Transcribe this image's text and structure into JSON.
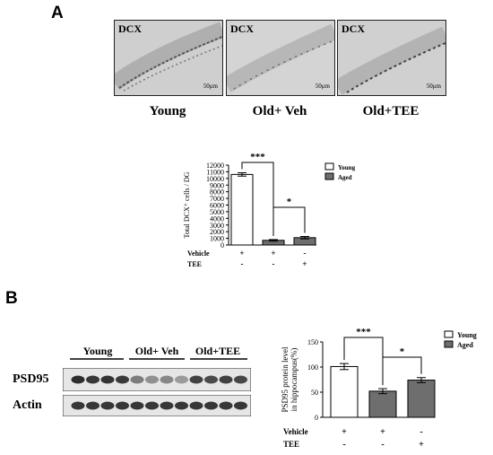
{
  "panel_a": {
    "letter": "A",
    "micrographs": [
      {
        "stain": "DCX",
        "scale_bar": "50μm",
        "caption": "Young"
      },
      {
        "stain": "DCX",
        "scale_bar": "50μm",
        "caption": "Old+ Veh"
      },
      {
        "stain": "DCX",
        "scale_bar": "50μm",
        "caption": "Old+TEE"
      }
    ]
  },
  "panel_b": {
    "letter": "B",
    "blot": {
      "group_labels": [
        "Young",
        "Old+ Veh",
        "Old+TEE"
      ],
      "row_labels": [
        "PSD95",
        "Actin"
      ],
      "psd95_intensity": [
        0.95,
        0.9,
        0.92,
        0.88,
        0.55,
        0.45,
        0.5,
        0.4,
        0.85,
        0.8,
        0.85,
        0.82
      ],
      "actin_intensity": [
        0.9,
        0.9,
        0.9,
        0.9,
        0.9,
        0.9,
        0.9,
        0.9,
        0.9,
        0.9,
        0.9,
        0.9
      ]
    }
  },
  "chart_data": [
    {
      "type": "bar",
      "ylabel": "Total DCX⁺ cells / DG",
      "yticks": [
        0,
        1000,
        2000,
        3000,
        4000,
        5000,
        6000,
        7000,
        8000,
        9000,
        10000,
        11000,
        12000
      ],
      "ylim": [
        0,
        12000
      ],
      "categories": [
        "Young",
        "Old+ Veh",
        "Old+TEE"
      ],
      "values": [
        10600,
        700,
        1100
      ],
      "errors": [
        250,
        120,
        180
      ],
      "bar_colors": [
        "#ffffff",
        "#6e6e6e",
        "#6e6e6e"
      ],
      "legend": [
        {
          "label": "Young",
          "color": "#ffffff"
        },
        {
          "label": "Aged",
          "color": "#6e6e6e"
        }
      ],
      "legend_position": "top-right",
      "treatment_rows": [
        {
          "label": "Vehicle",
          "signs": [
            "+",
            "+",
            "-"
          ]
        },
        {
          "label": "TEE",
          "signs": [
            "-",
            "-",
            "+"
          ]
        }
      ],
      "significance": [
        {
          "from": 0,
          "to": 1,
          "label": "***"
        },
        {
          "from": 1,
          "to": 2,
          "label": "*"
        }
      ]
    },
    {
      "type": "bar",
      "ylabel": "PSD95 protein level in hippocampus(%)",
      "ylabel_lines": [
        "PSD95 protein level",
        "in hippocampus(%)"
      ],
      "yticks": [
        0,
        50,
        100,
        150
      ],
      "ylim": [
        0,
        150
      ],
      "categories": [
        "Young",
        "Old+ Veh",
        "Old+TEE"
      ],
      "values": [
        101,
        52,
        74
      ],
      "errors": [
        6,
        5,
        5
      ],
      "bar_colors": [
        "#ffffff",
        "#6e6e6e",
        "#6e6e6e"
      ],
      "legend": [
        {
          "label": "Young",
          "color": "#ffffff"
        },
        {
          "label": "Aged",
          "color": "#6e6e6e"
        }
      ],
      "legend_position": "top-right",
      "treatment_rows": [
        {
          "label": "Vehicle",
          "signs": [
            "+",
            "+",
            "-"
          ]
        },
        {
          "label": "TEE",
          "signs": [
            "-",
            "-",
            "+"
          ]
        }
      ],
      "significance": [
        {
          "from": 0,
          "to": 1,
          "label": "***"
        },
        {
          "from": 1,
          "to": 2,
          "label": "*"
        }
      ]
    }
  ]
}
